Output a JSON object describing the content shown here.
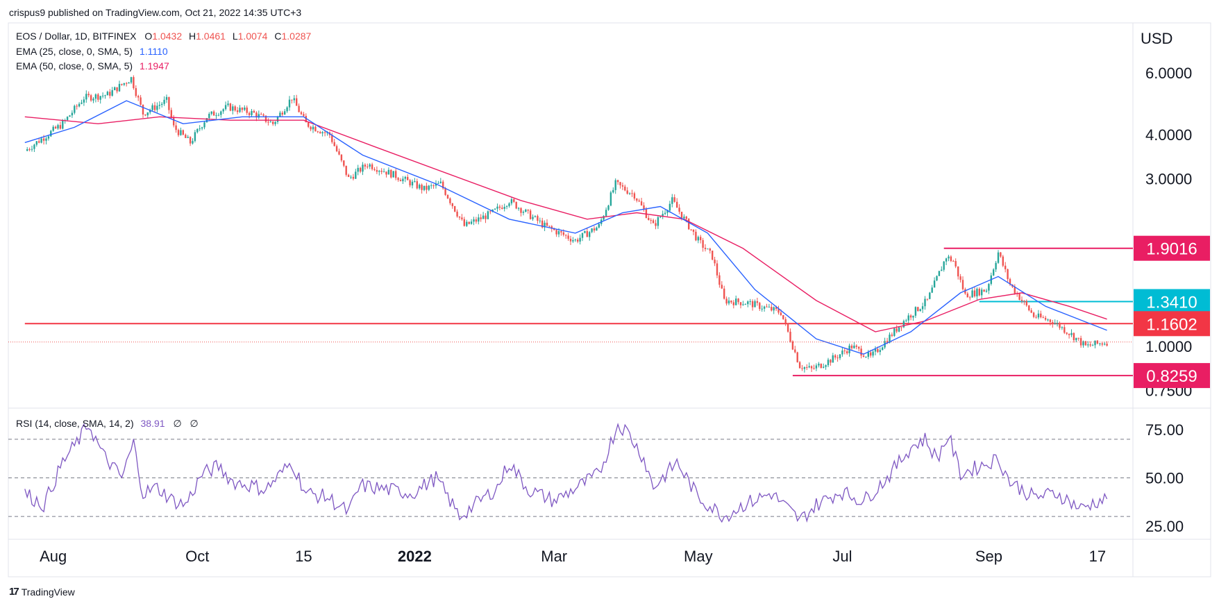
{
  "header": {
    "published": "crispus9 published on TradingView.com, Oct 21, 2022 14:35 UTC+3"
  },
  "legend": {
    "symbol": "EOS / Dollar, 1D, BITFINEX",
    "o_label": "O",
    "o_value": "1.0432",
    "h_label": "H",
    "h_value": "1.0461",
    "l_label": "L",
    "l_value": "1.0074",
    "c_label": "C",
    "c_value": "1.0287",
    "ema25_label": "EMA (25, close, 0, SMA, 5)",
    "ema25_value": "1.1110",
    "ema50_label": "EMA (50, close, 0, SMA, 5)",
    "ema50_value": "1.1947"
  },
  "rsi_legend": {
    "label": "RSI (14, close, SMA, 14, 2)",
    "value": "38.91",
    "extra1": "∅",
    "extra2": "∅"
  },
  "currency": "USD",
  "footer": {
    "brand": "TradingView",
    "logo_icon": "tradingview-logo-icon"
  },
  "colors": {
    "up": "#26a69a",
    "down": "#ef5350",
    "ema25": "#2962ff",
    "ema50": "#e91e63",
    "rsi": "#7e57c2",
    "h_red": "#f23645",
    "h_magenta": "#e91e63",
    "h_cyan": "#00bcd4"
  },
  "chart_data": [
    {
      "type": "candlestick",
      "title": "EOS / Dollar, 1D, BITFINEX",
      "y_scale": "log",
      "ylim": [
        0.7,
        7.0
      ],
      "y_ticks": [
        "6.0000",
        "4.0000",
        "3.0000",
        "1.0000",
        "0.7500"
      ],
      "x_ticks": [
        "Aug",
        "Oct",
        "15",
        "2022",
        "Mar",
        "May",
        "Jul",
        "Sep",
        "17"
      ],
      "grid": false,
      "price_path": [
        [
          "2021-07-20",
          3.6
        ],
        [
          "2021-08-05",
          4.3
        ],
        [
          "2021-08-14",
          5.1
        ],
        [
          "2021-08-24",
          5.2
        ],
        [
          "2021-09-03",
          5.8
        ],
        [
          "2021-09-08",
          4.6
        ],
        [
          "2021-09-18",
          5.0
        ],
        [
          "2021-09-21",
          4.2
        ],
        [
          "2021-09-28",
          3.8
        ],
        [
          "2021-10-05",
          4.5
        ],
        [
          "2021-10-14",
          4.8
        ],
        [
          "2021-10-25",
          4.6
        ],
        [
          "2021-11-02",
          4.3
        ],
        [
          "2021-11-10",
          5.1
        ],
        [
          "2021-11-16",
          4.3
        ],
        [
          "2021-11-26",
          4.0
        ],
        [
          "2021-12-04",
          3.0
        ],
        [
          "2021-12-12",
          3.3
        ],
        [
          "2021-12-22",
          3.1
        ],
        [
          "2022-01-05",
          2.8
        ],
        [
          "2022-01-12",
          2.9
        ],
        [
          "2022-01-22",
          2.2
        ],
        [
          "2022-02-03",
          2.4
        ],
        [
          "2022-02-10",
          2.6
        ],
        [
          "2022-02-25",
          2.2
        ],
        [
          "2022-03-10",
          2.0
        ],
        [
          "2022-03-20",
          2.2
        ],
        [
          "2022-03-27",
          2.9
        ],
        [
          "2022-04-04",
          2.7
        ],
        [
          "2022-04-12",
          2.2
        ],
        [
          "2022-04-20",
          2.6
        ],
        [
          "2022-05-01",
          2.0
        ],
        [
          "2022-05-07",
          1.8
        ],
        [
          "2022-05-12",
          1.35
        ],
        [
          "2022-05-22",
          1.33
        ],
        [
          "2022-06-05",
          1.25
        ],
        [
          "2022-06-13",
          0.88
        ],
        [
          "2022-06-18",
          0.86
        ],
        [
          "2022-06-28",
          0.93
        ],
        [
          "2022-07-05",
          1.0
        ],
        [
          "2022-07-13",
          0.93
        ],
        [
          "2022-07-28",
          1.2
        ],
        [
          "2022-08-06",
          1.35
        ],
        [
          "2022-08-14",
          1.8
        ],
        [
          "2022-08-17",
          1.75
        ],
        [
          "2022-08-22",
          1.4
        ],
        [
          "2022-08-31",
          1.45
        ],
        [
          "2022-09-05",
          1.85
        ],
        [
          "2022-09-10",
          1.5
        ],
        [
          "2022-09-20",
          1.22
        ],
        [
          "2022-09-28",
          1.18
        ],
        [
          "2022-10-06",
          1.08
        ],
        [
          "2022-10-12",
          1.0
        ],
        [
          "2022-10-21",
          1.03
        ]
      ],
      "ema25_path": [
        [
          "2021-07-20",
          3.8
        ],
        [
          "2021-08-10",
          4.2
        ],
        [
          "2021-09-01",
          5.0
        ],
        [
          "2021-09-25",
          4.3
        ],
        [
          "2021-10-20",
          4.5
        ],
        [
          "2021-11-15",
          4.5
        ],
        [
          "2021-12-10",
          3.5
        ],
        [
          "2022-01-10",
          2.9
        ],
        [
          "2022-02-10",
          2.3
        ],
        [
          "2022-03-10",
          2.1
        ],
        [
          "2022-03-30",
          2.4
        ],
        [
          "2022-04-15",
          2.5
        ],
        [
          "2022-05-05",
          2.1
        ],
        [
          "2022-05-25",
          1.45
        ],
        [
          "2022-06-20",
          1.05
        ],
        [
          "2022-07-10",
          0.95
        ],
        [
          "2022-07-30",
          1.1
        ],
        [
          "2022-08-20",
          1.42
        ],
        [
          "2022-09-05",
          1.58
        ],
        [
          "2022-09-25",
          1.3
        ],
        [
          "2022-10-21",
          1.111
        ]
      ],
      "ema50_path": [
        [
          "2021-07-20",
          4.5
        ],
        [
          "2021-08-20",
          4.3
        ],
        [
          "2021-09-15",
          4.5
        ],
        [
          "2021-10-15",
          4.4
        ],
        [
          "2021-11-15",
          4.4
        ],
        [
          "2021-12-15",
          3.7
        ],
        [
          "2022-01-15",
          3.1
        ],
        [
          "2022-02-15",
          2.6
        ],
        [
          "2022-03-15",
          2.3
        ],
        [
          "2022-04-05",
          2.4
        ],
        [
          "2022-04-25",
          2.3
        ],
        [
          "2022-05-20",
          1.9
        ],
        [
          "2022-06-20",
          1.35
        ],
        [
          "2022-07-15",
          1.1
        ],
        [
          "2022-08-05",
          1.18
        ],
        [
          "2022-08-28",
          1.36
        ],
        [
          "2022-09-15",
          1.42
        ],
        [
          "2022-10-05",
          1.3
        ],
        [
          "2022-10-21",
          1.195
        ]
      ],
      "horizontal_levels": [
        {
          "value": 1.9016,
          "label": "1.9016",
          "color": "#e91e63",
          "from": "2022-08-13"
        },
        {
          "value": 1.341,
          "label": "1.3410",
          "color": "#00bcd4",
          "from": "2022-08-28"
        },
        {
          "value": 1.1602,
          "label": "1.1602",
          "color": "#f23645",
          "from": "2021-07-20"
        },
        {
          "value": 0.8259,
          "label": "0.8259",
          "color": "#e91e63",
          "from": "2022-06-10"
        }
      ],
      "last_price": 1.0287
    },
    {
      "type": "line",
      "title": "RSI (14, close, SMA, 14, 2)",
      "ylim": [
        20,
        85
      ],
      "y_ticks": [
        "75.00",
        "50.00",
        "25.00"
      ],
      "bands": [
        70,
        50,
        30
      ],
      "rsi_path": [
        [
          "2021-07-20",
          42
        ],
        [
          "2021-07-28",
          36
        ],
        [
          "2021-08-05",
          58
        ],
        [
          "2021-08-12",
          70
        ],
        [
          "2021-08-16",
          78
        ],
        [
          "2021-08-22",
          62
        ],
        [
          "2021-08-30",
          50
        ],
        [
          "2021-09-04",
          68
        ],
        [
          "2021-09-08",
          42
        ],
        [
          "2021-09-14",
          45
        ],
        [
          "2021-09-21",
          38
        ],
        [
          "2021-09-26",
          36
        ],
        [
          "2021-10-03",
          52
        ],
        [
          "2021-10-10",
          56
        ],
        [
          "2021-10-16",
          48
        ],
        [
          "2021-10-24",
          46
        ],
        [
          "2021-10-30",
          44
        ],
        [
          "2021-11-06",
          53
        ],
        [
          "2021-11-10",
          58
        ],
        [
          "2021-11-16",
          42
        ],
        [
          "2021-11-25",
          40
        ],
        [
          "2021-12-04",
          32
        ],
        [
          "2021-12-09",
          46
        ],
        [
          "2021-12-20",
          44
        ],
        [
          "2021-12-31",
          42
        ],
        [
          "2022-01-10",
          50
        ],
        [
          "2022-01-20",
          30
        ],
        [
          "2022-02-05",
          45
        ],
        [
          "2022-02-10",
          58
        ],
        [
          "2022-02-18",
          44
        ],
        [
          "2022-03-01",
          38
        ],
        [
          "2022-03-12",
          46
        ],
        [
          "2022-03-20",
          52
        ],
        [
          "2022-03-28",
          78
        ],
        [
          "2022-04-01",
          74
        ],
        [
          "2022-04-08",
          60
        ],
        [
          "2022-04-12",
          45
        ],
        [
          "2022-04-22",
          58
        ],
        [
          "2022-05-01",
          40
        ],
        [
          "2022-05-12",
          30
        ],
        [
          "2022-05-20",
          36
        ],
        [
          "2022-06-01",
          42
        ],
        [
          "2022-06-13",
          28
        ],
        [
          "2022-06-20",
          36
        ],
        [
          "2022-06-30",
          43
        ],
        [
          "2022-07-10",
          38
        ],
        [
          "2022-07-20",
          50
        ],
        [
          "2022-07-30",
          66
        ],
        [
          "2022-08-05",
          70
        ],
        [
          "2022-08-10",
          60
        ],
        [
          "2022-08-15",
          72
        ],
        [
          "2022-08-20",
          52
        ],
        [
          "2022-08-28",
          56
        ],
        [
          "2022-09-05",
          60
        ],
        [
          "2022-09-10",
          48
        ],
        [
          "2022-09-20",
          40
        ],
        [
          "2022-09-30",
          42
        ],
        [
          "2022-10-10",
          34
        ],
        [
          "2022-10-17",
          38
        ],
        [
          "2022-10-21",
          38.91
        ]
      ]
    }
  ]
}
